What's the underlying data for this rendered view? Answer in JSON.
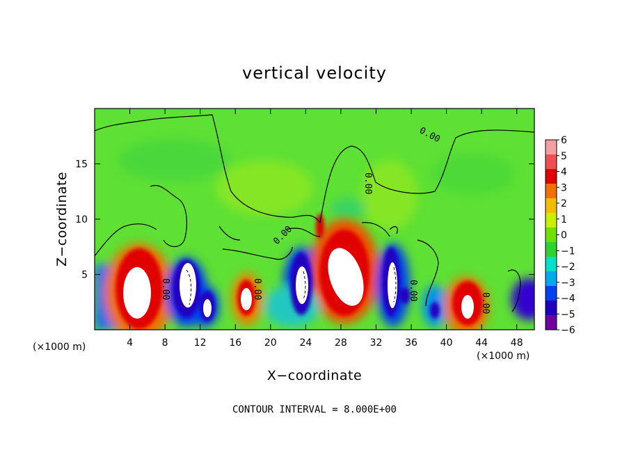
{
  "chart_data": {
    "type": "heatmap",
    "title": "vertical velocity",
    "xlabel": "X−coordinate",
    "ylabel": "Z−coordinate",
    "x_unit_label": "(×1000 m)",
    "y_unit_label": "(×1000 m)",
    "xlim": [
      0,
      50
    ],
    "ylim": [
      0,
      20
    ],
    "x_ticks": [
      "4",
      "8",
      "12",
      "16",
      "20",
      "24",
      "28",
      "32",
      "36",
      "40",
      "44",
      "48"
    ],
    "y_ticks": [
      "5",
      "10",
      "15"
    ],
    "colorbar": {
      "labels": [
        "6",
        "5",
        "4",
        "3",
        "2",
        "1",
        "0",
        "−1",
        "−2",
        "−3",
        "−4",
        "−5",
        "−6"
      ],
      "colors": [
        "#f4a0a0",
        "#ee5050",
        "#e00000",
        "#f07000",
        "#f0c000",
        "#c8f000",
        "#70e000",
        "#30d030",
        "#00e0c8",
        "#00a8f0",
        "#0040f0",
        "#2000c0",
        "#7000a0"
      ]
    },
    "contour_label": "0.00",
    "footer": "CONTOUR INTERVAL = 8.000E+00",
    "cells": [
      {
        "x": 5.0,
        "z": 3.2,
        "sign": "up",
        "label": "strong updraft"
      },
      {
        "x": 10.0,
        "z": 3.8,
        "sign": "down",
        "label": "downdraft"
      },
      {
        "x": 12.8,
        "z": 1.8,
        "sign": "down",
        "label": "downdraft"
      },
      {
        "x": 17.0,
        "z": 2.5,
        "sign": "up",
        "label": "updraft"
      },
      {
        "x": 23.5,
        "z": 3.8,
        "sign": "down",
        "label": "downdraft"
      },
      {
        "x": 28.5,
        "z": 4.8,
        "sign": "up",
        "label": "strong updraft"
      },
      {
        "x": 34.0,
        "z": 4.0,
        "sign": "down",
        "label": "downdraft"
      },
      {
        "x": 42.3,
        "z": 2.0,
        "sign": "up",
        "label": "updraft"
      }
    ]
  }
}
